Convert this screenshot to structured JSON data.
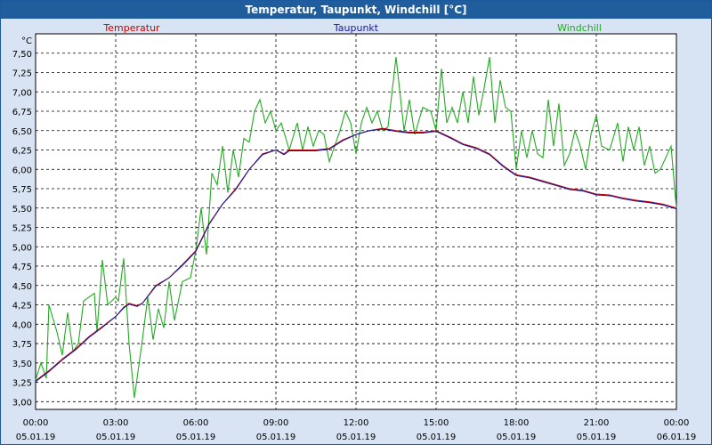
{
  "window": {
    "title": "Temperatur, Taupunkt, Windchill [°C]"
  },
  "colors": {
    "temperatur": "#cc0000",
    "taupunkt": "#1a1aa0",
    "windchill": "#22aa22",
    "titlebar": "#1f5d9d"
  },
  "chart_data": {
    "type": "line",
    "title": "Temperatur, Taupunkt, Windchill [°C]",
    "ylabel": "°C",
    "ylim": [
      2.9,
      7.75
    ],
    "xlim": [
      0,
      24
    ],
    "grid": true,
    "legend_position": "top",
    "y_ticks": [
      3.0,
      3.25,
      3.5,
      3.75,
      4.0,
      4.25,
      4.5,
      4.75,
      5.0,
      5.25,
      5.5,
      5.75,
      6.0,
      6.25,
      6.5,
      6.75,
      7.0,
      7.25,
      7.5
    ],
    "y_tick_labels": [
      "3,00",
      "3,25",
      "3,50",
      "3,75",
      "4,00",
      "4,25",
      "4,50",
      "4,75",
      "5,00",
      "5,25",
      "5,50",
      "5,75",
      "6,00",
      "6,25",
      "6,50",
      "6,75",
      "7,00",
      "7,25",
      "7,50"
    ],
    "x_ticks": [
      {
        "x": 0,
        "time": "00:00",
        "date": "05.01.19"
      },
      {
        "x": 3,
        "time": "03:00",
        "date": "05.01.19"
      },
      {
        "x": 6,
        "time": "06:00",
        "date": "05.01.19"
      },
      {
        "x": 9,
        "time": "09:00",
        "date": "05.01.19"
      },
      {
        "x": 12,
        "time": "12:00",
        "date": "05.01.19"
      },
      {
        "x": 15,
        "time": "15:00",
        "date": "05.01.19"
      },
      {
        "x": 18,
        "time": "18:00",
        "date": "05.01.19"
      },
      {
        "x": 21,
        "time": "21:00",
        "date": "05.01.19"
      },
      {
        "x": 24,
        "time": "00:00",
        "date": "06.01.19"
      }
    ],
    "series": [
      {
        "name": "Temperatur",
        "color": "#cc0000",
        "points": [
          [
            0,
            3.27
          ],
          [
            0.5,
            3.4
          ],
          [
            1,
            3.55
          ],
          [
            1.5,
            3.68
          ],
          [
            2,
            3.84
          ],
          [
            2.5,
            3.97
          ],
          [
            3,
            4.1
          ],
          [
            3.3,
            4.22
          ],
          [
            3.5,
            4.27
          ],
          [
            3.8,
            4.24
          ],
          [
            4,
            4.27
          ],
          [
            4.5,
            4.5
          ],
          [
            5,
            4.6
          ],
          [
            5.5,
            4.77
          ],
          [
            6,
            4.95
          ],
          [
            6.5,
            5.3
          ],
          [
            7,
            5.55
          ],
          [
            7.5,
            5.75
          ],
          [
            8,
            6.0
          ],
          [
            8.5,
            6.2
          ],
          [
            9,
            6.25
          ],
          [
            9.3,
            6.2
          ],
          [
            9.5,
            6.25
          ],
          [
            10,
            6.25
          ],
          [
            10.5,
            6.25
          ],
          [
            11,
            6.27
          ],
          [
            11.5,
            6.38
          ],
          [
            12,
            6.45
          ],
          [
            12.5,
            6.5
          ],
          [
            13,
            6.53
          ],
          [
            13.5,
            6.5
          ],
          [
            14,
            6.48
          ],
          [
            14.5,
            6.48
          ],
          [
            15,
            6.5
          ],
          [
            15.5,
            6.42
          ],
          [
            16,
            6.33
          ],
          [
            16.5,
            6.28
          ],
          [
            17,
            6.2
          ],
          [
            17.5,
            6.05
          ],
          [
            18,
            5.93
          ],
          [
            18.5,
            5.9
          ],
          [
            19,
            5.85
          ],
          [
            19.5,
            5.8
          ],
          [
            20,
            5.75
          ],
          [
            20.5,
            5.73
          ],
          [
            21,
            5.68
          ],
          [
            21.5,
            5.67
          ],
          [
            22,
            5.63
          ],
          [
            22.5,
            5.6
          ],
          [
            23,
            5.58
          ],
          [
            23.5,
            5.55
          ],
          [
            24,
            5.5
          ]
        ]
      },
      {
        "name": "Taupunkt",
        "color": "#1a1aa0",
        "points": [
          [
            0,
            3.26
          ],
          [
            0.5,
            3.39
          ],
          [
            1,
            3.54
          ],
          [
            1.5,
            3.67
          ],
          [
            2,
            3.83
          ],
          [
            2.5,
            3.96
          ],
          [
            3,
            4.1
          ],
          [
            3.3,
            4.21
          ],
          [
            3.5,
            4.26
          ],
          [
            3.8,
            4.23
          ],
          [
            4,
            4.27
          ],
          [
            4.5,
            4.49
          ],
          [
            5,
            4.6
          ],
          [
            5.5,
            4.76
          ],
          [
            6,
            4.94
          ],
          [
            6.5,
            5.29
          ],
          [
            7,
            5.55
          ],
          [
            7.5,
            5.74
          ],
          [
            8,
            6.0
          ],
          [
            8.5,
            6.19
          ],
          [
            9,
            6.25
          ],
          [
            9.3,
            6.19
          ],
          [
            9.5,
            6.24
          ],
          [
            10,
            6.24
          ],
          [
            10.5,
            6.24
          ],
          [
            11,
            6.26
          ],
          [
            11.5,
            6.37
          ],
          [
            12,
            6.45
          ],
          [
            12.5,
            6.5
          ],
          [
            13,
            6.52
          ],
          [
            13.5,
            6.49
          ],
          [
            14,
            6.47
          ],
          [
            14.5,
            6.47
          ],
          [
            15,
            6.49
          ],
          [
            15.5,
            6.41
          ],
          [
            16,
            6.32
          ],
          [
            16.5,
            6.27
          ],
          [
            17,
            6.19
          ],
          [
            17.5,
            6.04
          ],
          [
            18,
            5.92
          ],
          [
            18.5,
            5.89
          ],
          [
            19,
            5.84
          ],
          [
            19.5,
            5.79
          ],
          [
            20,
            5.74
          ],
          [
            20.5,
            5.72
          ],
          [
            21,
            5.67
          ],
          [
            21.5,
            5.66
          ],
          [
            22,
            5.62
          ],
          [
            22.5,
            5.59
          ],
          [
            23,
            5.57
          ],
          [
            23.5,
            5.54
          ],
          [
            24,
            5.49
          ]
        ]
      },
      {
        "name": "Windchill",
        "color": "#22aa22",
        "points": [
          [
            0,
            3.28
          ],
          [
            0.2,
            3.5
          ],
          [
            0.4,
            3.3
          ],
          [
            0.5,
            4.25
          ],
          [
            0.8,
            3.9
          ],
          [
            1,
            3.6
          ],
          [
            1.2,
            4.15
          ],
          [
            1.4,
            3.65
          ],
          [
            1.6,
            3.75
          ],
          [
            1.8,
            4.3
          ],
          [
            2,
            4.35
          ],
          [
            2.2,
            4.4
          ],
          [
            2.3,
            3.9
          ],
          [
            2.5,
            4.83
          ],
          [
            2.7,
            4.25
          ],
          [
            3,
            4.35
          ],
          [
            3.1,
            4.3
          ],
          [
            3.3,
            4.85
          ],
          [
            3.5,
            3.75
          ],
          [
            3.7,
            3.05
          ],
          [
            4,
            3.8
          ],
          [
            4.2,
            4.35
          ],
          [
            4.4,
            3.8
          ],
          [
            4.6,
            4.2
          ],
          [
            4.8,
            3.95
          ],
          [
            5,
            4.55
          ],
          [
            5.2,
            4.05
          ],
          [
            5.5,
            4.55
          ],
          [
            5.8,
            4.6
          ],
          [
            6,
            4.95
          ],
          [
            6.2,
            5.5
          ],
          [
            6.4,
            4.9
          ],
          [
            6.6,
            5.95
          ],
          [
            6.8,
            5.8
          ],
          [
            7,
            6.3
          ],
          [
            7.2,
            5.7
          ],
          [
            7.4,
            6.25
          ],
          [
            7.6,
            5.9
          ],
          [
            7.8,
            6.4
          ],
          [
            8,
            6.35
          ],
          [
            8.2,
            6.75
          ],
          [
            8.4,
            6.9
          ],
          [
            8.6,
            6.6
          ],
          [
            8.8,
            6.75
          ],
          [
            9,
            6.5
          ],
          [
            9.2,
            6.6
          ],
          [
            9.5,
            6.25
          ],
          [
            9.8,
            6.6
          ],
          [
            10,
            6.25
          ],
          [
            10.2,
            6.55
          ],
          [
            10.4,
            6.3
          ],
          [
            10.6,
            6.5
          ],
          [
            10.8,
            6.45
          ],
          [
            11,
            6.1
          ],
          [
            11.2,
            6.3
          ],
          [
            11.4,
            6.5
          ],
          [
            11.6,
            6.75
          ],
          [
            11.8,
            6.6
          ],
          [
            12,
            6.2
          ],
          [
            12.2,
            6.6
          ],
          [
            12.4,
            6.8
          ],
          [
            12.6,
            6.6
          ],
          [
            12.8,
            6.75
          ],
          [
            13,
            6.5
          ],
          [
            13.2,
            6.55
          ],
          [
            13.5,
            7.45
          ],
          [
            13.8,
            6.5
          ],
          [
            14,
            6.9
          ],
          [
            14.2,
            6.45
          ],
          [
            14.5,
            6.8
          ],
          [
            14.8,
            6.75
          ],
          [
            15,
            6.5
          ],
          [
            15.2,
            7.3
          ],
          [
            15.4,
            6.6
          ],
          [
            15.6,
            6.8
          ],
          [
            15.8,
            6.6
          ],
          [
            16,
            7.0
          ],
          [
            16.2,
            6.6
          ],
          [
            16.4,
            7.2
          ],
          [
            16.6,
            6.7
          ],
          [
            16.8,
            7.05
          ],
          [
            17,
            7.45
          ],
          [
            17.2,
            6.6
          ],
          [
            17.4,
            7.15
          ],
          [
            17.6,
            6.8
          ],
          [
            17.8,
            6.75
          ],
          [
            18,
            6.0
          ],
          [
            18.2,
            6.5
          ],
          [
            18.4,
            6.15
          ],
          [
            18.6,
            6.5
          ],
          [
            18.8,
            6.2
          ],
          [
            19,
            6.15
          ],
          [
            19.2,
            6.9
          ],
          [
            19.4,
            6.3
          ],
          [
            19.6,
            6.85
          ],
          [
            19.8,
            6.05
          ],
          [
            20,
            6.2
          ],
          [
            20.2,
            6.5
          ],
          [
            20.4,
            6.3
          ],
          [
            20.6,
            6.0
          ],
          [
            20.8,
            6.45
          ],
          [
            21,
            6.7
          ],
          [
            21.2,
            6.3
          ],
          [
            21.5,
            6.25
          ],
          [
            21.8,
            6.6
          ],
          [
            22,
            6.1
          ],
          [
            22.2,
            6.55
          ],
          [
            22.4,
            6.25
          ],
          [
            22.6,
            6.55
          ],
          [
            22.8,
            6.05
          ],
          [
            23,
            6.3
          ],
          [
            23.2,
            5.95
          ],
          [
            23.4,
            6.0
          ],
          [
            23.6,
            6.15
          ],
          [
            23.8,
            6.3
          ],
          [
            24,
            5.5
          ]
        ]
      }
    ]
  }
}
